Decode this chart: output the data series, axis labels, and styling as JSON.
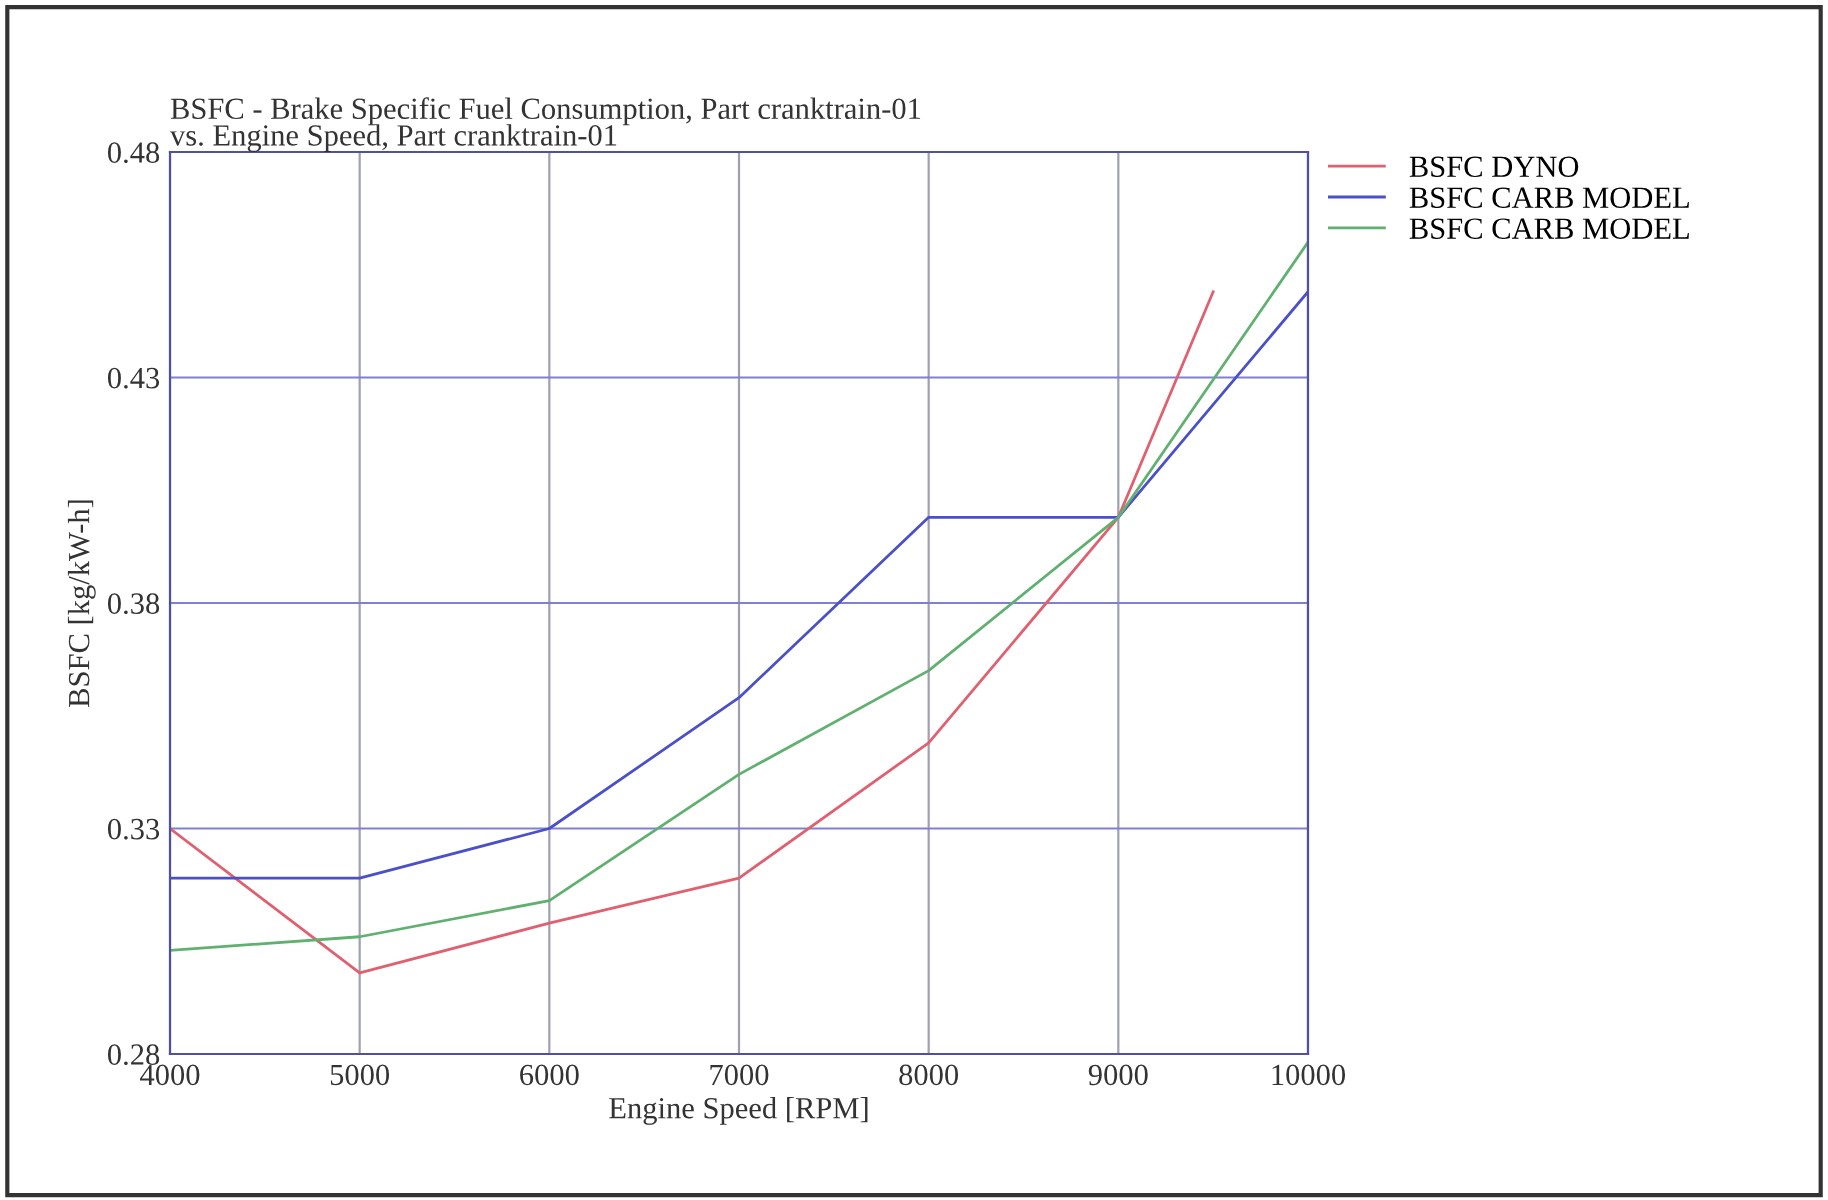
{
  "chart_data": {
    "type": "line",
    "title": "BSFC - Brake Specific Fuel Consumption, Part cranktrain-01\nvs. Engine Speed, Part cranktrain-01",
    "xlabel": "Engine Speed [RPM]",
    "ylabel": "BSFC [kg/kW-h]",
    "xlim": [
      4000,
      10000
    ],
    "xticks": [
      4000,
      5000,
      6000,
      7000,
      8000,
      9000,
      10000
    ],
    "ylim": [
      0.28,
      0.48
    ],
    "yticks": [
      0.28,
      0.33,
      0.38,
      0.43,
      0.48
    ],
    "grid": true,
    "legend": "top right",
    "marker": "none",
    "line_style": "solid",
    "series": [
      {
        "name": "BSFC DYNO",
        "color": "#e06070",
        "x": [
          4000,
          5000,
          6000,
          7000,
          8000,
          9000,
          9500
        ],
        "values": [
          0.33,
          0.298,
          0.309,
          0.319,
          0.349,
          0.399,
          0.449
        ]
      },
      {
        "name": "BSFC CARB MODEL",
        "color": "#4a50c8",
        "x": [
          4000,
          5000,
          6000,
          7000,
          8000,
          9000,
          10000
        ],
        "values": [
          0.319,
          0.319,
          0.33,
          0.359,
          0.399,
          0.399,
          0.449
        ]
      },
      {
        "name": "BSFC CARB MODEL",
        "color": "#60b070",
        "x": [
          4000,
          5000,
          6000,
          7000,
          8000,
          9000,
          10000
        ],
        "values": [
          0.303,
          0.306,
          0.314,
          0.342,
          0.365,
          0.399,
          0.46
        ]
      }
    ]
  }
}
